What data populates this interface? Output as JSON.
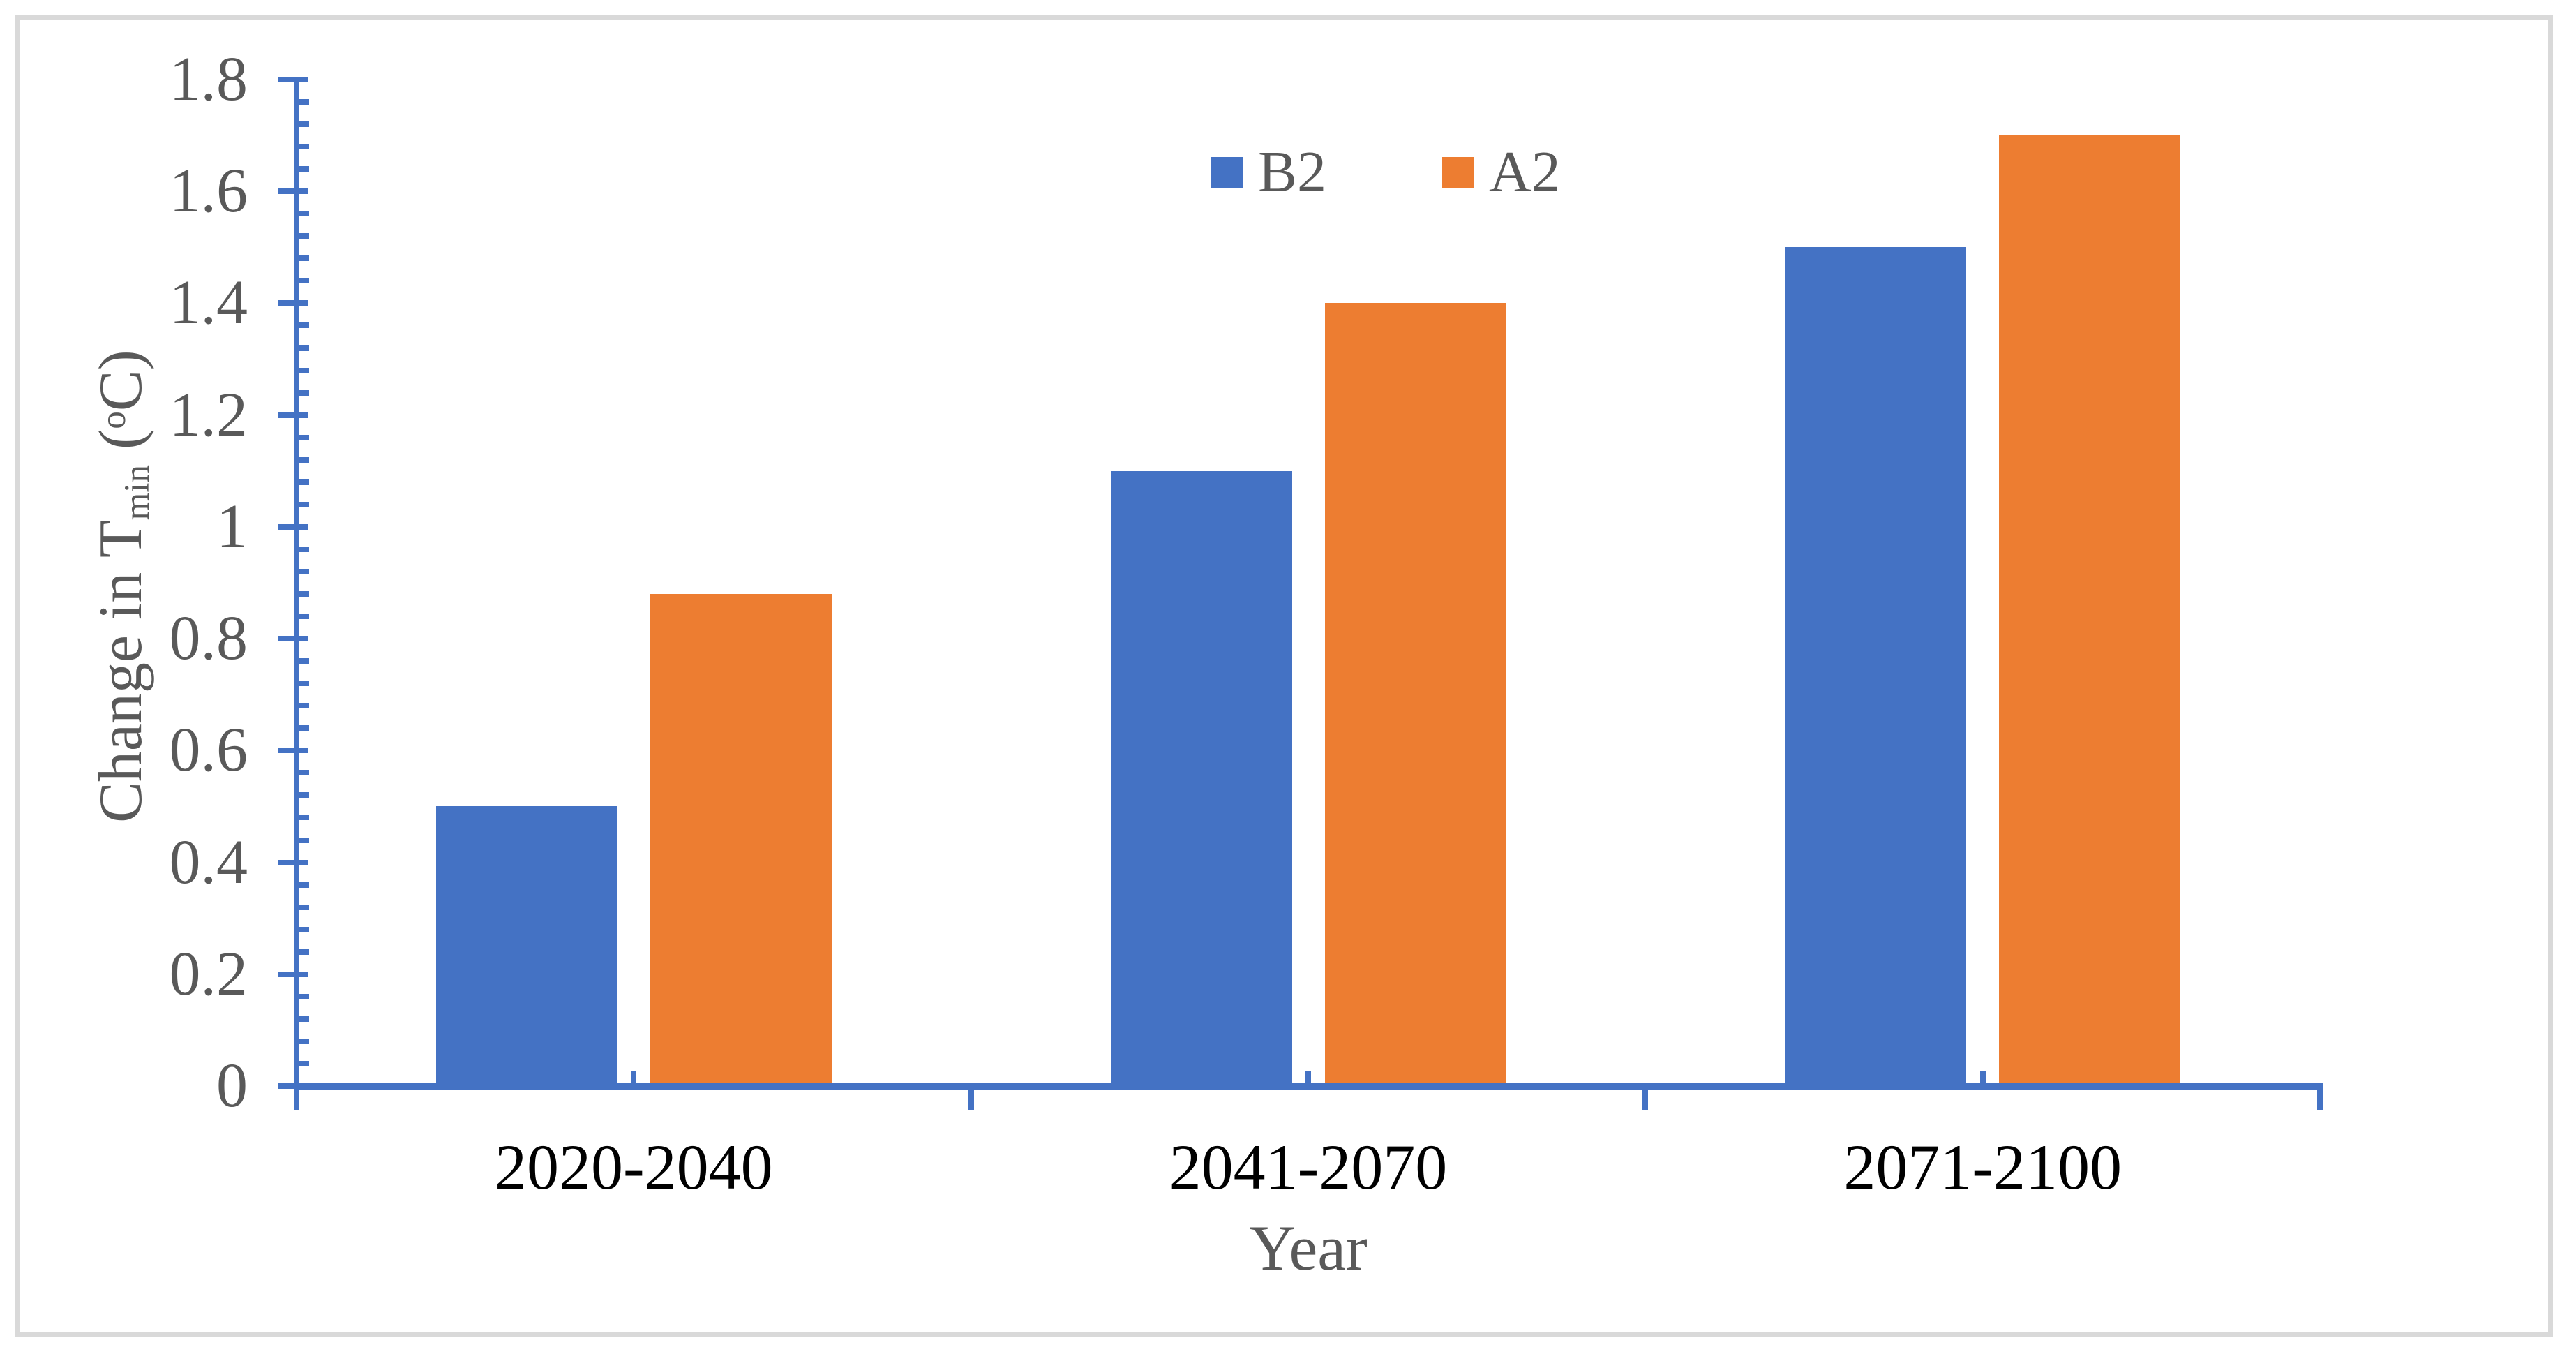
{
  "figure": {
    "background_color": "#FFFFFF",
    "border_color": "#D9D9D9",
    "axis_color": "#4472C4",
    "tick_label_color": "#595959",
    "category_label_color": "#000000",
    "axis_title_color": "#595959"
  },
  "legend": {
    "position": "top",
    "items": [
      {
        "label": "B2",
        "color": "#4472C4"
      },
      {
        "label": "A2",
        "color": "#ED7D31"
      }
    ]
  },
  "y_axis": {
    "title_prefix": "Change in T",
    "title_subscript": "min",
    "title_mid": " (",
    "title_superscript": "o",
    "title_suffix": "C)",
    "tick_labels": [
      "0",
      "0.2",
      "0.4",
      "0.6",
      "0.8",
      "1",
      "1.2",
      "1.4",
      "1.6",
      "1.8"
    ],
    "min": 0,
    "max": 1.8,
    "major_step": 0.2,
    "minor_step": 0.04
  },
  "x_axis": {
    "title": "Year"
  },
  "chart_data": {
    "type": "bar",
    "title": "",
    "categories": [
      "2020-2040",
      "2041-2070",
      "2071-2100"
    ],
    "series": [
      {
        "name": "B2",
        "color": "#4472C4",
        "values": [
          0.5,
          1.1,
          1.5
        ]
      },
      {
        "name": "A2",
        "color": "#ED7D31",
        "values": [
          0.88,
          1.4,
          1.7
        ]
      }
    ],
    "xlabel": "Year",
    "ylabel": "Change in Tmin (oC)",
    "ylim": [
      0,
      1.8
    ],
    "y_major_step": 0.2,
    "y_minor_step": 0.04,
    "grid": false,
    "legend_position": "top"
  }
}
